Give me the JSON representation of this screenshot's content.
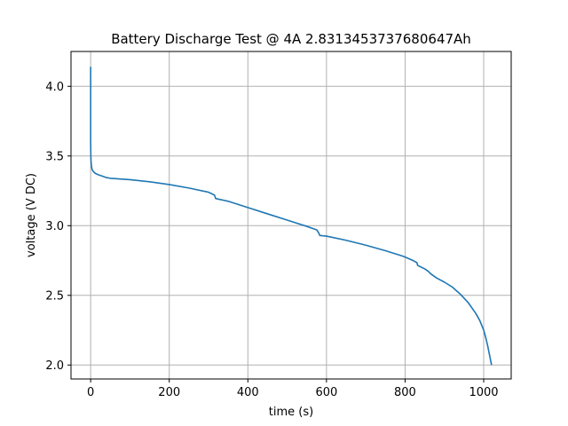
{
  "chart_data": {
    "type": "line",
    "title": "Battery Discharge Test @ 4A 2.8313453737680647Ah",
    "xlabel": "time (s)",
    "ylabel": "voltage (V DC)",
    "xlim": [
      -50,
      1070
    ],
    "ylim": [
      1.9,
      4.25
    ],
    "xticks": [
      0,
      200,
      400,
      600,
      800,
      1000
    ],
    "xtick_labels": [
      "0",
      "200",
      "400",
      "600",
      "800",
      "1000"
    ],
    "yticks": [
      2.0,
      2.5,
      3.0,
      3.5,
      4.0
    ],
    "ytick_labels": [
      "2.0",
      "2.5",
      "3.0",
      "3.5",
      "4.0"
    ],
    "grid": true,
    "line_color": "#1f77b4",
    "series": [
      {
        "x": [
          0,
          0,
          0,
          0.5,
          1,
          2,
          3,
          5,
          8,
          12,
          20,
          30,
          40,
          50,
          75,
          100,
          150,
          200,
          250,
          300,
          315,
          318,
          350,
          400,
          450,
          500,
          550,
          575,
          580,
          583,
          600,
          650,
          700,
          750,
          790,
          800,
          820,
          830,
          832,
          850,
          860,
          865,
          880,
          900,
          920,
          940,
          960,
          980,
          990,
          1000,
          1005,
          1010,
          1015,
          1020
        ],
        "y": [
          4.14,
          3.9,
          3.6,
          3.5,
          3.46,
          3.43,
          3.41,
          3.395,
          3.385,
          3.375,
          3.365,
          3.355,
          3.345,
          3.34,
          3.335,
          3.33,
          3.315,
          3.295,
          3.27,
          3.24,
          3.22,
          3.195,
          3.175,
          3.13,
          3.085,
          3.04,
          2.995,
          2.97,
          2.95,
          2.93,
          2.925,
          2.895,
          2.86,
          2.82,
          2.785,
          2.775,
          2.75,
          2.735,
          2.715,
          2.69,
          2.67,
          2.655,
          2.625,
          2.595,
          2.56,
          2.51,
          2.45,
          2.37,
          2.32,
          2.25,
          2.2,
          2.14,
          2.07,
          2.0
        ]
      }
    ]
  }
}
